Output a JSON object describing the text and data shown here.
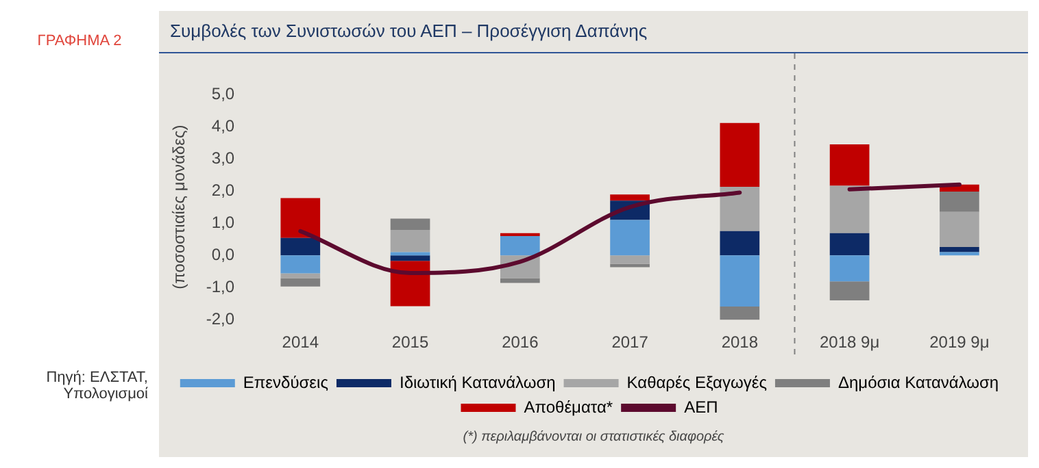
{
  "chart_data": {
    "type": "bar",
    "title": "Συμβολές των Συνιστωσών του ΑΕΠ – Προσέγγιση Δαπάνης",
    "ylabel": "(ποσοστιαίες μονάδες)",
    "annotations": [
      "ΓΡΑΦΗΜΑ 2",
      "Πηγή: ΕΛΣΤΑΤ, Υπολογισμοί",
      "(*) περιλαμβάνονται οι στατιστικές διαφορές"
    ],
    "categories": [
      "2014",
      "2015",
      "2016",
      "2017",
      "2018",
      "2018 9μ",
      "2019 9μ"
    ],
    "stacked": true,
    "ylim": [
      -2,
      5
    ],
    "yticks": [
      {
        "value": -2,
        "label": "-2,0"
      },
      {
        "value": -1,
        "label": "-1,0"
      },
      {
        "value": 0,
        "label": "0,0"
      },
      {
        "value": 1,
        "label": "1,0"
      },
      {
        "value": 2,
        "label": "2,0"
      },
      {
        "value": 3,
        "label": "3,0"
      },
      {
        "value": 4,
        "label": "4,0"
      },
      {
        "value": 5,
        "label": "5,0"
      }
    ],
    "grid": false,
    "legend": "bottom",
    "marker": "none",
    "series": [
      {
        "name": "Επενδύσεις",
        "color": "#5b9bd5",
        "values": [
          -0.56,
          0.1,
          0.6,
          1.1,
          -1.59,
          -0.81,
          0.1
        ]
      },
      {
        "name": "Ιδιωτική Κατανάλωση",
        "color": "#0d2a66",
        "values": [
          0.54,
          -0.17,
          0,
          0.6,
          0.75,
          0.69,
          0.16
        ]
      },
      {
        "name": "Καθαρές Εξαγωγές",
        "color": "#a6a6a6",
        "values": [
          -0.15,
          0.69,
          -0.71,
          -0.27,
          1.38,
          1.47,
          1.09
        ]
      },
      {
        "name": "Δημόσια Κατανάλωση",
        "color": "#7f7f7f",
        "values": [
          -0.26,
          0.35,
          -0.15,
          -0.1,
          -0.47,
          -0.59,
          0.63
        ]
      },
      {
        "name": "Αποθέματα*",
        "color": "#c00000",
        "values": [
          1.24,
          -1.41,
          0.09,
          0.19,
          1.98,
          1.29,
          0.22
        ]
      },
      {
        "name": "ΑΕΠ",
        "type": "line",
        "color": "#5c0a2e",
        "values": [
          0.75,
          -0.55,
          -0.2,
          1.5,
          1.95,
          null,
          null
        ]
      },
      {
        "type": "line",
        "color": "#5c0a2e",
        "values": [
          null,
          null,
          null,
          null,
          null,
          2.05,
          2.2
        ]
      }
    ]
  }
}
